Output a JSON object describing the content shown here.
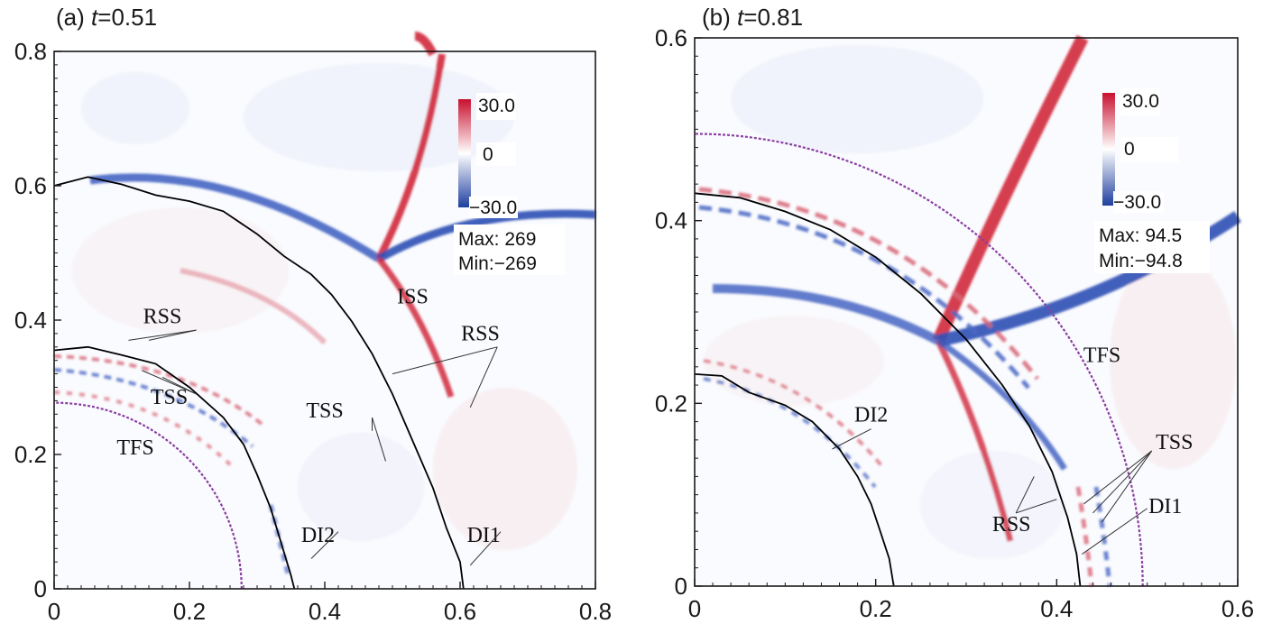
{
  "chart_data": [
    {
      "type": "heatmap",
      "panel": "(a)",
      "time_label": "t",
      "time_value": "0.51",
      "xlim": [
        0,
        0.8
      ],
      "ylim": [
        0,
        0.8
      ],
      "xticks": [
        "0",
        "0.2",
        "0.4",
        "0.6",
        "0.8"
      ],
      "yticks": [
        "0",
        "0.2",
        "0.4",
        "0.6",
        "0.8"
      ],
      "colorbar": {
        "max_label": "30.0",
        "mid_label": "0",
        "min_label": "−30.0",
        "high_color": "#c8102e",
        "low_color": "#1f3f9f"
      },
      "stats": {
        "max": "Max: 269",
        "min": "Min:−269"
      },
      "curves": {
        "DI1": [
          [
            0,
            0.6
          ],
          [
            0.05,
            0.613
          ],
          [
            0.1,
            0.602
          ],
          [
            0.15,
            0.586
          ],
          [
            0.2,
            0.577
          ],
          [
            0.25,
            0.562
          ],
          [
            0.3,
            0.528
          ],
          [
            0.34,
            0.495
          ],
          [
            0.38,
            0.468
          ],
          [
            0.41,
            0.438
          ],
          [
            0.44,
            0.398
          ],
          [
            0.47,
            0.35
          ],
          [
            0.5,
            0.29
          ],
          [
            0.53,
            0.22
          ],
          [
            0.56,
            0.15
          ],
          [
            0.58,
            0.09
          ],
          [
            0.6,
            0.04
          ],
          [
            0.605,
            0.0
          ]
        ],
        "DI2": [
          [
            0,
            0.355
          ],
          [
            0.05,
            0.36
          ],
          [
            0.1,
            0.348
          ],
          [
            0.15,
            0.335
          ],
          [
            0.2,
            0.3
          ],
          [
            0.25,
            0.255
          ],
          [
            0.28,
            0.215
          ],
          [
            0.3,
            0.17
          ],
          [
            0.32,
            0.12
          ],
          [
            0.335,
            0.07
          ],
          [
            0.35,
            0.02
          ],
          [
            0.355,
            0.0
          ]
        ],
        "TFS_radius": 0.277
      },
      "annotations": [
        {
          "label": "ISS",
          "x": 0.53,
          "y": 0.425
        },
        {
          "label": "RSS",
          "x": 0.16,
          "y": 0.395
        },
        {
          "label": "TSS",
          "x": 0.17,
          "y": 0.275
        },
        {
          "label": "TFS",
          "x": 0.12,
          "y": 0.2
        },
        {
          "label": "RSS",
          "x": 0.63,
          "y": 0.37
        },
        {
          "label": "TSS",
          "x": 0.4,
          "y": 0.255
        },
        {
          "label": "DI2",
          "x": 0.39,
          "y": 0.07
        },
        {
          "label": "DI1",
          "x": 0.635,
          "y": 0.07
        }
      ]
    },
    {
      "type": "heatmap",
      "panel": "(b)",
      "time_label": "t",
      "time_value": "0.81",
      "xlim": [
        0,
        0.6
      ],
      "ylim": [
        0,
        0.6
      ],
      "xticks": [
        "0",
        "0.2",
        "0.4",
        "0.6"
      ],
      "yticks": [
        "0",
        "0.2",
        "0.4",
        "0.6"
      ],
      "colorbar": {
        "max_label": "30.0",
        "mid_label": "0",
        "min_label": "−30.0",
        "high_color": "#c8102e",
        "low_color": "#1f3f9f"
      },
      "stats": {
        "max": "Max: 94.5",
        "min": "Min:−94.8"
      },
      "curves": {
        "DI1": [
          [
            0,
            0.43
          ],
          [
            0.05,
            0.425
          ],
          [
            0.1,
            0.41
          ],
          [
            0.15,
            0.39
          ],
          [
            0.2,
            0.36
          ],
          [
            0.25,
            0.32
          ],
          [
            0.3,
            0.27
          ],
          [
            0.34,
            0.22
          ],
          [
            0.37,
            0.175
          ],
          [
            0.395,
            0.125
          ],
          [
            0.412,
            0.075
          ],
          [
            0.422,
            0.035
          ],
          [
            0.426,
            0.0
          ]
        ],
        "DI2": [
          [
            0,
            0.232
          ],
          [
            0.03,
            0.23
          ],
          [
            0.06,
            0.212
          ],
          [
            0.1,
            0.198
          ],
          [
            0.13,
            0.18
          ],
          [
            0.16,
            0.15
          ],
          [
            0.18,
            0.12
          ],
          [
            0.195,
            0.09
          ],
          [
            0.205,
            0.06
          ],
          [
            0.215,
            0.03
          ],
          [
            0.22,
            0.0
          ]
        ],
        "TFS_radius": 0.495
      },
      "annotations": [
        {
          "label": "TFS",
          "x": 0.45,
          "y": 0.245
        },
        {
          "label": "DI2",
          "x": 0.195,
          "y": 0.18
        },
        {
          "label": "TSS",
          "x": 0.53,
          "y": 0.15
        },
        {
          "label": "RSS",
          "x": 0.35,
          "y": 0.06
        },
        {
          "label": "DI1",
          "x": 0.52,
          "y": 0.08
        }
      ]
    }
  ]
}
